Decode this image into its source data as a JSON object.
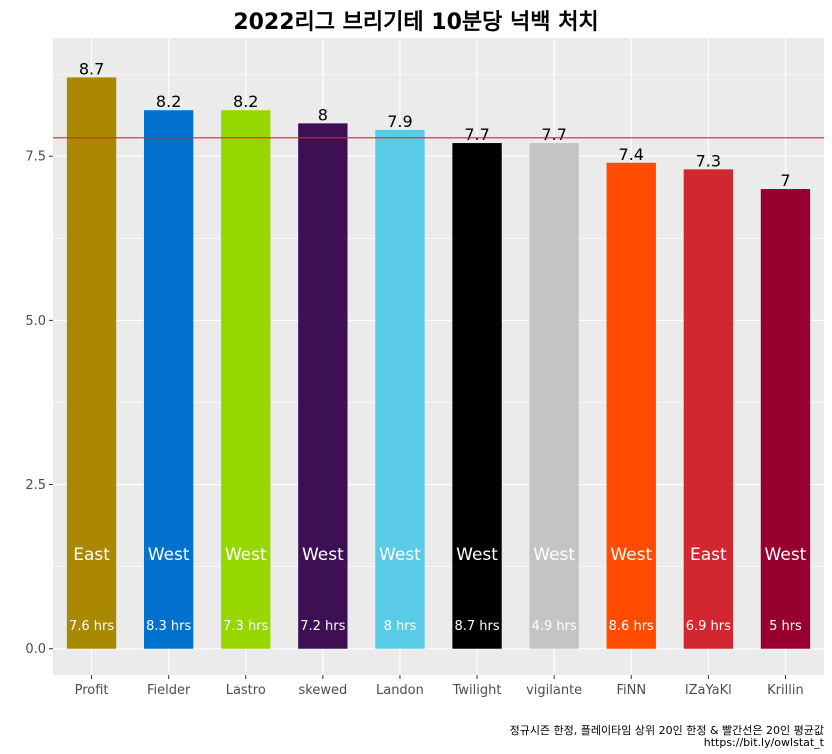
{
  "chart_data": {
    "type": "bar",
    "title": "2022리그 브리기테 10분당 넉백 처치",
    "xlabel": "",
    "ylabel": "",
    "ylim": [
      -0.4,
      9.3
    ],
    "yticks": [
      0.0,
      2.5,
      5.0,
      7.5
    ],
    "ytick_labels": [
      "0.0",
      "2.5",
      "5.0",
      "7.5"
    ],
    "grid": true,
    "legend": "none",
    "average_line": {
      "value": 7.78,
      "color": "#d62728"
    },
    "bars": [
      {
        "category": "Profit",
        "value": 8.7,
        "label": "8.7",
        "region": "East",
        "hours": "7.6 hrs",
        "color": "#aa8800"
      },
      {
        "category": "Fielder",
        "value": 8.2,
        "label": "8.2",
        "region": "West",
        "hours": "8.3 hrs",
        "color": "#0072ce"
      },
      {
        "category": "Lastro",
        "value": 8.2,
        "label": "8.2",
        "region": "West",
        "hours": "7.3 hrs",
        "color": "#97d700"
      },
      {
        "category": "skewed",
        "value": 8.0,
        "label": "8",
        "region": "West",
        "hours": "7.2 hrs",
        "color": "#3c1053"
      },
      {
        "category": "Landon",
        "value": 7.9,
        "label": "7.9",
        "region": "West",
        "hours": "8 hrs",
        "color": "#59cbe8"
      },
      {
        "category": "Twilight",
        "value": 7.7,
        "label": "7.7",
        "region": "West",
        "hours": "8.7 hrs",
        "color": "#000000"
      },
      {
        "category": "vigilante",
        "value": 7.7,
        "label": "7.7",
        "region": "West",
        "hours": "4.9 hrs",
        "color": "#c4c4c4"
      },
      {
        "category": "FiNN",
        "value": 7.4,
        "label": "7.4",
        "region": "West",
        "hours": "8.6 hrs",
        "color": "#ff4c00"
      },
      {
        "category": "lZaYaKl",
        "value": 7.3,
        "label": "7.3",
        "region": "East",
        "hours": "6.9 hrs",
        "color": "#d22630"
      },
      {
        "category": "Krillin",
        "value": 7.0,
        "label": "7",
        "region": "West",
        "hours": "5 hrs",
        "color": "#97002e"
      }
    ],
    "panel_background": "#ebebeb",
    "gridline_color": "#ffffff"
  },
  "captions": {
    "line1": "정규시즌 한정, 플레이타임 상위 20인 한정 & 빨간선은 20인 평균값",
    "line2": "https://bit.ly/owlstat_t"
  }
}
